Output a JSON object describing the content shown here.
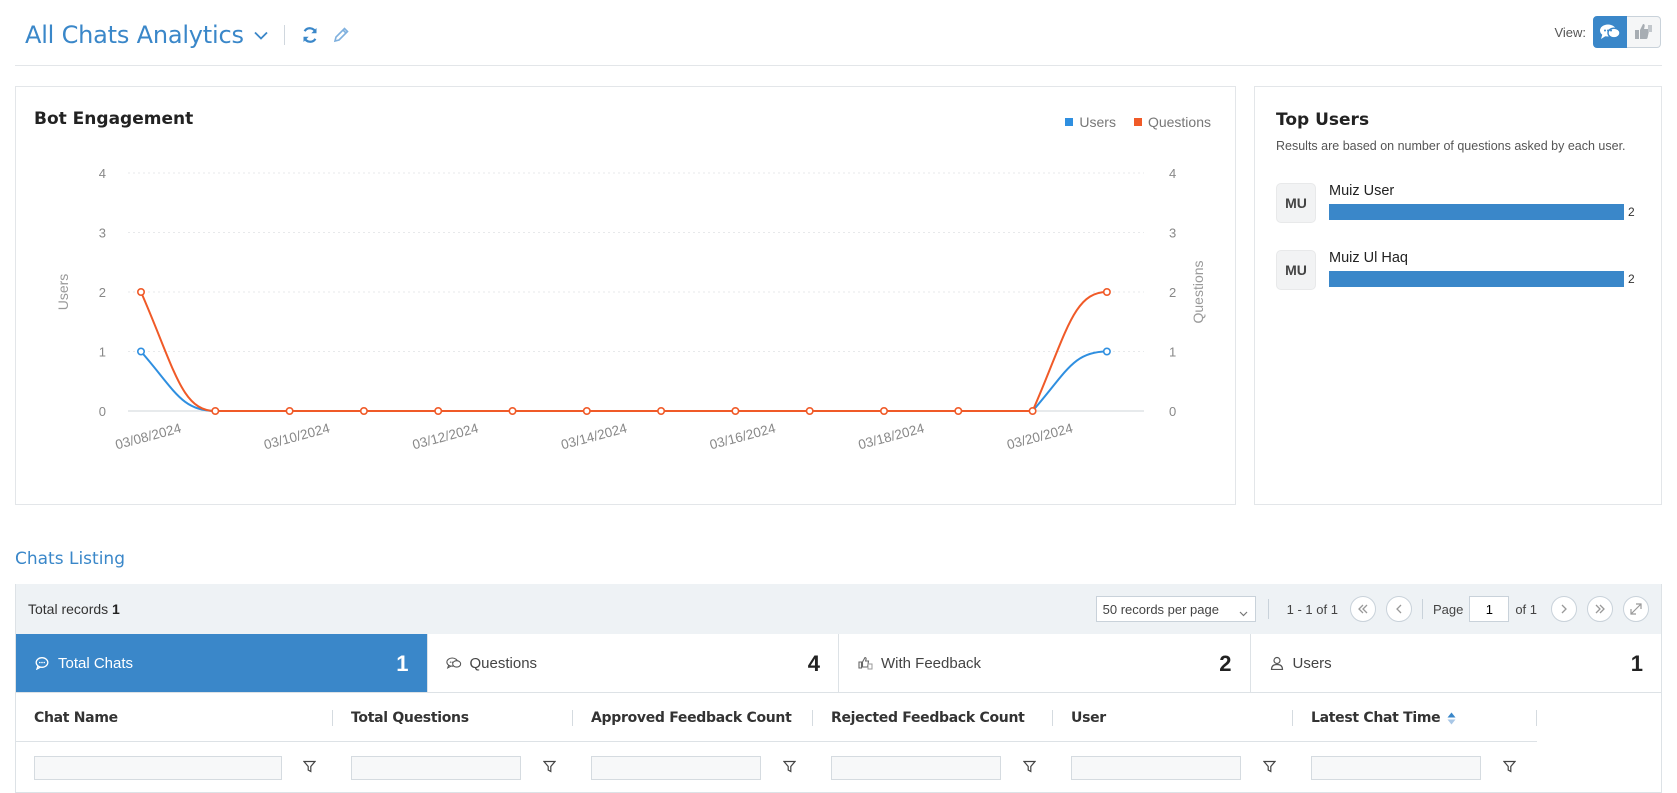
{
  "header": {
    "title": "All Chats Analytics",
    "view_label": "View:"
  },
  "engagement": {
    "title": "Bot Engagement",
    "legend": [
      {
        "name": "Users",
        "color": "#2f8fe0"
      },
      {
        "name": "Questions",
        "color": "#f05a28"
      }
    ],
    "chart_data": {
      "type": "line",
      "x": [
        "03/08/2024",
        "03/09/2024",
        "03/10/2024",
        "03/11/2024",
        "03/12/2024",
        "03/13/2024",
        "03/14/2024",
        "03/15/2024",
        "03/16/2024",
        "03/17/2024",
        "03/18/2024",
        "03/19/2024",
        "03/20/2024",
        "03/21/2024"
      ],
      "x_tick_labels": [
        "03/08/2024",
        "03/10/2024",
        "03/12/2024",
        "03/14/2024",
        "03/16/2024",
        "03/18/2024",
        "03/20/2024"
      ],
      "series": [
        {
          "name": "Users",
          "axis": "left",
          "color": "#2f8fe0",
          "values": [
            1,
            0,
            0,
            0,
            0,
            0,
            0,
            0,
            0,
            0,
            0,
            0,
            0,
            1
          ]
        },
        {
          "name": "Questions",
          "axis": "right",
          "color": "#f05a28",
          "values": [
            2,
            0,
            0,
            0,
            0,
            0,
            0,
            0,
            0,
            0,
            0,
            0,
            0,
            2
          ]
        }
      ],
      "ylabel": "Users",
      "ylabel_right": "Questions",
      "ylim": [
        0,
        4
      ],
      "y_ticks": [
        0,
        1,
        2,
        3,
        4
      ],
      "grid": true,
      "legend_position": "top-right"
    }
  },
  "top_users": {
    "title": "Top Users",
    "subtitle": "Results are based on number of questions asked by each user.",
    "max_value": 2,
    "users": [
      {
        "initials": "MU",
        "name": "Muiz User",
        "value": 2,
        "value_label": "2"
      },
      {
        "initials": "MU",
        "name": "Muiz Ul Haq",
        "value": 2,
        "value_label": "2"
      }
    ]
  },
  "listing": {
    "title": "Chats Listing",
    "total_label": "Total records",
    "total_value": "1",
    "per_page": "50 records per page",
    "range": "1 - 1 of 1",
    "page_label": "Page",
    "page_value": "1",
    "page_of": "of 1",
    "tabs": [
      {
        "label": "Total Chats",
        "count": "1",
        "icon": "chat-bubble-icon"
      },
      {
        "label": "Questions",
        "count": "4",
        "icon": "chat-bubbles-icon"
      },
      {
        "label": "With Feedback",
        "count": "2",
        "icon": "feedback-icon"
      },
      {
        "label": "Users",
        "count": "1",
        "icon": "user-icon"
      }
    ],
    "columns": [
      "Chat Name",
      "Total Questions",
      "Approved Feedback Count",
      "Rejected Feedback Count",
      "User",
      "Latest Chat Time"
    ]
  },
  "colors": {
    "accent": "#3a87c9",
    "users_series": "#2f8fe0",
    "questions_series": "#f05a28"
  }
}
